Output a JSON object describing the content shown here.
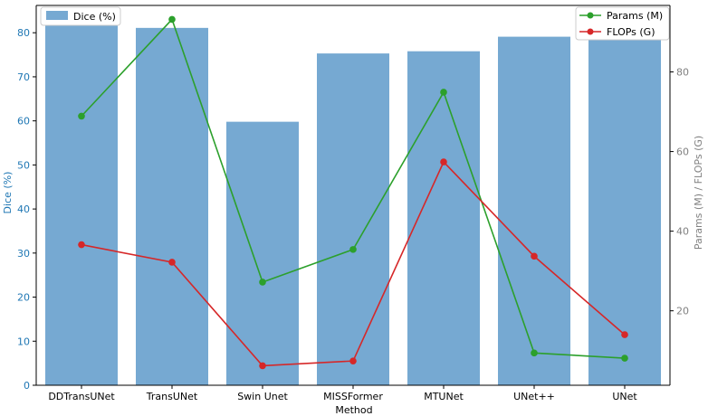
{
  "chart_data": {
    "type": "bar",
    "categories": [
      "DDTransUNet",
      "TransUNet",
      "Swin Unet",
      "MISSFormer",
      "MTUNet",
      "UNet++",
      "UNet"
    ],
    "xlabel": "Method",
    "ylabel_left": "Dice (%)",
    "ylabel_right": "Params (M) / FLOPs (G)",
    "ylim_left": [
      0,
      86.2
    ],
    "ylim_right": [
      1.3,
      96.7
    ],
    "yticks_left": [
      "0",
      "10",
      "20",
      "30",
      "40",
      "50",
      "60",
      "70",
      "80"
    ],
    "yticks_right": [
      "20",
      "40",
      "60",
      "80"
    ],
    "yticks_right_values": [
      20,
      40,
      60,
      80
    ],
    "grid": false,
    "series": [
      {
        "name": "Dice (%)",
        "kind": "bar",
        "axis": "left",
        "color": "#76a9d2",
        "values": [
          83.3,
          81.1,
          59.8,
          75.3,
          75.8,
          79.1,
          79.0
        ]
      },
      {
        "name": "Params (M)",
        "kind": "line",
        "axis": "right",
        "color": "#2ca02c",
        "values": [
          68.9,
          93.2,
          27.2,
          35.4,
          74.9,
          9.4,
          8.1
        ]
      },
      {
        "name": "FLOPs (G)",
        "kind": "line",
        "axis": "right",
        "color": "#d62728",
        "values": [
          36.6,
          32.2,
          6.2,
          7.4,
          57.4,
          33.7,
          14.0
        ]
      }
    ],
    "legend_left": {
      "placement": "top-left",
      "entries": [
        "Dice (%)"
      ]
    },
    "legend_right": {
      "placement": "top-right",
      "entries": [
        "Params (M)",
        "FLOPs (G)"
      ]
    },
    "colors": {
      "left_axis": "#1f77b4",
      "right_axis": "#808080"
    }
  }
}
